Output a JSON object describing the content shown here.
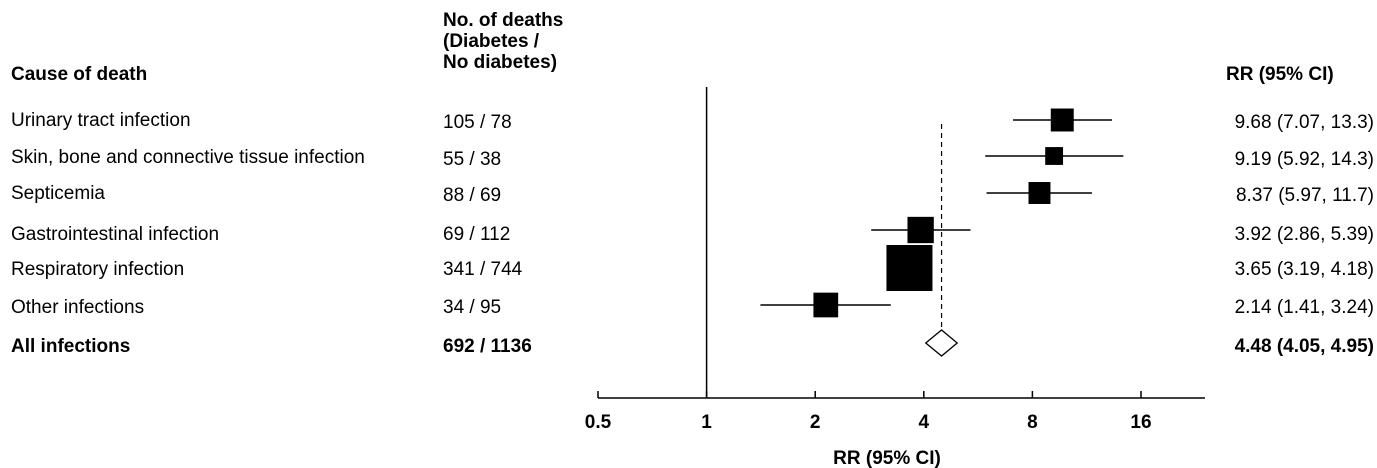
{
  "headers": {
    "cause": "Cause of death",
    "deaths_lines": [
      "No. of deaths",
      "(Diabetes /",
      "No diabetes)"
    ],
    "rr": "RR (95% CI)"
  },
  "rows": [
    {
      "cause": "Urinary tract infection",
      "deaths": "105 / 78",
      "rr_text": "9.68 (7.07, 13.3)",
      "bold": false
    },
    {
      "cause": "Skin, bone and connective tissue infection",
      "deaths": "55 / 38",
      "rr_text": "9.19 (5.92, 14.3)",
      "bold": false
    },
    {
      "cause": "Septicemia",
      "deaths": "88 / 69",
      "rr_text": "8.37 (5.97, 11.7)",
      "bold": false
    },
    {
      "cause": "Gastrointestinal infection",
      "deaths": "69 / 112",
      "rr_text": "3.92 (2.86, 5.39)",
      "bold": false
    },
    {
      "cause": "Respiratory infection",
      "deaths": "341 / 744",
      "rr_text": "3.65 (3.19, 4.18)",
      "bold": false
    },
    {
      "cause": "Other infections",
      "deaths": "34 / 95",
      "rr_text": "2.14 (1.41, 3.24)",
      "bold": false
    },
    {
      "cause": "All infections",
      "deaths": "692 / 1136",
      "rr_text": "4.48 (4.05, 4.95)",
      "bold": true
    }
  ],
  "chart_data": {
    "type": "forest",
    "xlabel": "RR (95% CI)",
    "x_scale": "log2",
    "xlim": [
      0.5,
      25
    ],
    "ticks": [
      0.5,
      1,
      2,
      4,
      8,
      16
    ],
    "tick_labels": [
      "0.5",
      "1",
      "2",
      "4",
      "8",
      "16"
    ],
    "reference_line": 1,
    "pooled_line": 4.48,
    "estimates": [
      {
        "label": "Urinary tract infection",
        "rr": 9.68,
        "lower": 7.07,
        "upper": 13.3,
        "weight": 78
      },
      {
        "label": "Skin, bone and connective tissue infection",
        "rr": 9.19,
        "lower": 5.92,
        "upper": 14.3,
        "weight": 38
      },
      {
        "label": "Septicemia",
        "rr": 8.37,
        "lower": 5.97,
        "upper": 11.7,
        "weight": 69
      },
      {
        "label": "Gastrointestinal infection",
        "rr": 3.92,
        "lower": 2.86,
        "upper": 5.39,
        "weight": 112
      },
      {
        "label": "Respiratory infection",
        "rr": 3.65,
        "lower": 3.19,
        "upper": 4.18,
        "weight": 744
      },
      {
        "label": "Other infections",
        "rr": 2.14,
        "lower": 1.41,
        "upper": 3.24,
        "weight": 95
      }
    ],
    "overall": {
      "label": "All infections",
      "rr": 4.48,
      "lower": 4.05,
      "upper": 4.95
    }
  }
}
